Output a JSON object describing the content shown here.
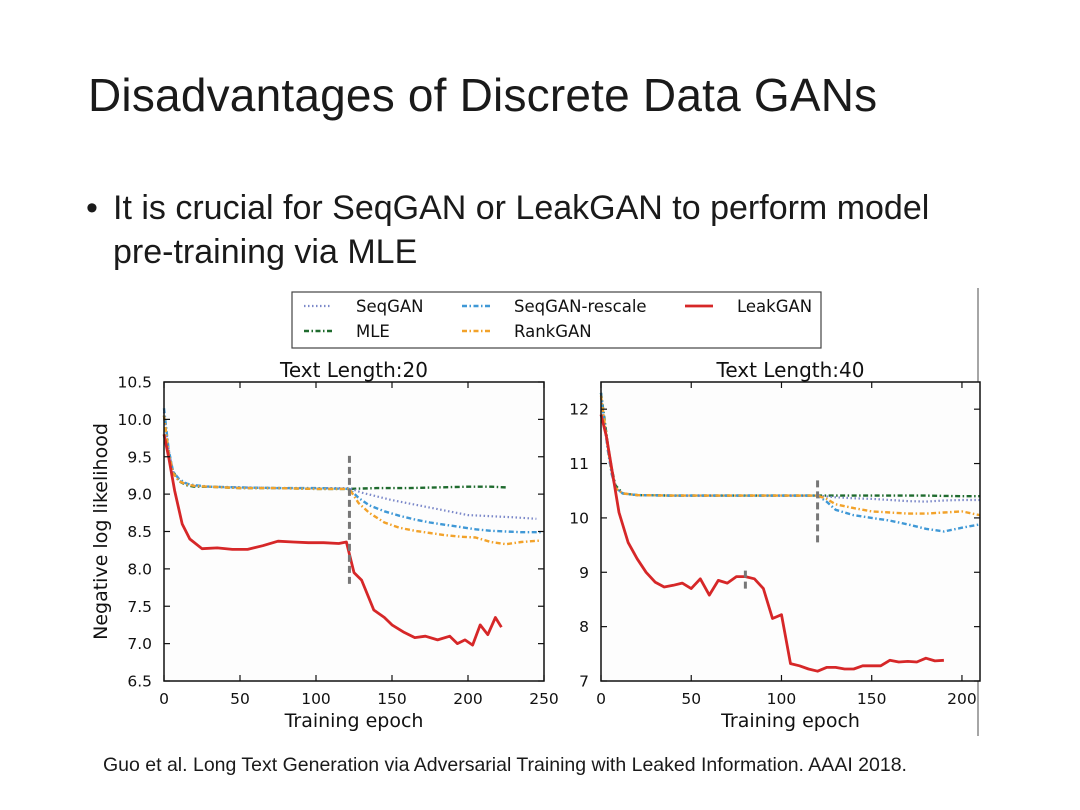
{
  "slide": {
    "title": "Disadvantages of Discrete Data GANs",
    "bullet_marker": "•",
    "bullet": "It is crucial for SeqGAN or LeakGAN to perform model pre-training via MLE",
    "citation": "Guo et al. Long Text Generation via Adversarial Training with Leaked Information. AAAI 2018."
  },
  "legend": {
    "entries": [
      {
        "name": "SeqGAN",
        "color": "#7b88c9",
        "style": "dotted"
      },
      {
        "name": "SeqGAN-rescale",
        "color": "#3f98d6",
        "style": "dashdot"
      },
      {
        "name": "LeakGAN",
        "color": "#d62728",
        "style": "solid"
      },
      {
        "name": "MLE",
        "color": "#1f6b2e",
        "style": "dashdot"
      },
      {
        "name": "RankGAN",
        "color": "#f2a22a",
        "style": "dashdot"
      }
    ]
  },
  "chart_data": [
    {
      "type": "line",
      "title": "Text Length:20",
      "xlabel": "Training epoch",
      "ylabel": "Negative log likelihood",
      "xlim": [
        0,
        250
      ],
      "ylim": [
        6.5,
        10.5
      ],
      "xticks": [
        0,
        50,
        100,
        150,
        200,
        250
      ],
      "yticks": [
        6.5,
        7.0,
        7.5,
        8.0,
        8.5,
        9.0,
        9.5,
        10.0,
        10.5
      ],
      "xtick_labels": [
        "0",
        "50",
        "100",
        "150",
        "200",
        "250"
      ],
      "ytick_labels": [
        "6.5",
        "7.0",
        "7.5",
        "8.0",
        "8.5",
        "9.0",
        "9.5",
        "10.0",
        "10.5"
      ],
      "vlines": [
        {
          "x": 122,
          "y_from": 7.8,
          "y_to": 9.55
        }
      ],
      "series": [
        {
          "name": "MLE",
          "x": [
            0,
            3,
            6,
            10,
            15,
            20,
            30,
            50,
            75,
            100,
            122,
            140,
            160,
            180,
            200,
            215,
            225
          ],
          "y": [
            10.05,
            9.55,
            9.3,
            9.17,
            9.12,
            9.1,
            9.1,
            9.08,
            9.08,
            9.07,
            9.07,
            9.08,
            9.08,
            9.09,
            9.1,
            9.1,
            9.09
          ]
        },
        {
          "name": "SeqGAN",
          "x": [
            0,
            3,
            6,
            10,
            15,
            20,
            30,
            50,
            75,
            100,
            122,
            130,
            140,
            150,
            160,
            170,
            180,
            190,
            200,
            210,
            220,
            230,
            245
          ],
          "y": [
            10.1,
            9.6,
            9.3,
            9.18,
            9.13,
            9.11,
            9.1,
            9.09,
            9.08,
            9.08,
            9.08,
            9.02,
            8.97,
            8.92,
            8.88,
            8.84,
            8.8,
            8.76,
            8.72,
            8.71,
            8.7,
            8.69,
            8.67
          ]
        },
        {
          "name": "SeqGAN-rescale",
          "x": [
            0,
            3,
            6,
            10,
            15,
            20,
            30,
            50,
            75,
            100,
            122,
            128,
            135,
            145,
            155,
            165,
            175,
            185,
            195,
            205,
            215,
            225,
            235,
            248
          ],
          "y": [
            10.15,
            9.6,
            9.3,
            9.2,
            9.14,
            9.12,
            9.1,
            9.09,
            9.08,
            9.08,
            9.07,
            8.95,
            8.85,
            8.77,
            8.71,
            8.66,
            8.62,
            8.59,
            8.56,
            8.53,
            8.51,
            8.5,
            8.49,
            8.49
          ]
        },
        {
          "name": "RankGAN",
          "x": [
            0,
            3,
            6,
            10,
            15,
            20,
            30,
            50,
            75,
            100,
            122,
            128,
            135,
            145,
            155,
            165,
            175,
            185,
            195,
            205,
            215,
            225,
            235,
            248
          ],
          "y": [
            10.05,
            9.55,
            9.28,
            9.17,
            9.13,
            9.11,
            9.1,
            9.08,
            9.08,
            9.07,
            9.07,
            8.88,
            8.75,
            8.62,
            8.55,
            8.51,
            8.48,
            8.45,
            8.43,
            8.42,
            8.36,
            8.33,
            8.36,
            8.38
          ]
        },
        {
          "name": "LeakGAN",
          "x": [
            0,
            3,
            7,
            12,
            17,
            25,
            35,
            45,
            55,
            65,
            75,
            85,
            95,
            105,
            115,
            120,
            125,
            130,
            138,
            145,
            150,
            158,
            165,
            172,
            180,
            188,
            193,
            198,
            203,
            208,
            213,
            218,
            222
          ],
          "y": [
            9.8,
            9.5,
            9.05,
            8.6,
            8.4,
            8.27,
            8.28,
            8.26,
            8.26,
            8.31,
            8.37,
            8.36,
            8.35,
            8.35,
            8.34,
            8.36,
            7.95,
            7.85,
            7.45,
            7.35,
            7.25,
            7.15,
            7.08,
            7.1,
            7.05,
            7.1,
            7.0,
            7.05,
            6.98,
            7.25,
            7.12,
            7.35,
            7.22
          ]
        }
      ]
    },
    {
      "type": "line",
      "title": "Text Length:40",
      "xlabel": "Training epoch",
      "ylabel": "",
      "xlim": [
        0,
        210
      ],
      "ylim": [
        7,
        12.5
      ],
      "xticks": [
        0,
        50,
        100,
        150,
        200
      ],
      "yticks": [
        7,
        8,
        9,
        10,
        11,
        12
      ],
      "xtick_labels": [
        "0",
        "50",
        "100",
        "150",
        "200"
      ],
      "ytick_labels": [
        "7",
        "8",
        "9",
        "10",
        "11",
        "12"
      ],
      "vlines": [
        {
          "x": 80,
          "y_from": 8.7,
          "y_to": 9.1
        },
        {
          "x": 120,
          "y_from": 9.55,
          "y_to": 10.75
        }
      ],
      "series": [
        {
          "name": "MLE",
          "x": [
            0,
            2,
            4,
            6,
            8,
            12,
            20,
            40,
            60,
            80,
            100,
            120,
            140,
            160,
            180,
            200,
            210
          ],
          "y": [
            12.3,
            11.8,
            11.3,
            10.9,
            10.6,
            10.45,
            10.42,
            10.41,
            10.41,
            10.41,
            10.41,
            10.41,
            10.41,
            10.41,
            10.41,
            10.4,
            10.4
          ]
        },
        {
          "name": "SeqGAN",
          "x": [
            0,
            2,
            4,
            6,
            8,
            12,
            20,
            40,
            60,
            80,
            100,
            120,
            130,
            140,
            150,
            160,
            170,
            180,
            190,
            200,
            210
          ],
          "y": [
            12.2,
            11.7,
            11.2,
            10.8,
            10.55,
            10.45,
            10.42,
            10.41,
            10.41,
            10.41,
            10.41,
            10.41,
            10.38,
            10.36,
            10.35,
            10.33,
            10.31,
            10.3,
            10.32,
            10.33,
            10.33
          ]
        },
        {
          "name": "SeqGAN-rescale",
          "x": [
            0,
            2,
            4,
            6,
            8,
            12,
            20,
            40,
            60,
            80,
            100,
            120,
            125,
            130,
            140,
            150,
            160,
            170,
            180,
            190,
            200,
            210
          ],
          "y": [
            12.3,
            11.7,
            11.2,
            10.8,
            10.55,
            10.45,
            10.42,
            10.41,
            10.41,
            10.41,
            10.41,
            10.41,
            10.3,
            10.15,
            10.05,
            10.0,
            9.95,
            9.88,
            9.8,
            9.75,
            9.82,
            9.88
          ]
        },
        {
          "name": "RankGAN",
          "x": [
            0,
            2,
            4,
            6,
            8,
            12,
            20,
            40,
            60,
            80,
            100,
            120,
            125,
            130,
            140,
            150,
            160,
            170,
            180,
            190,
            200,
            210
          ],
          "y": [
            12.25,
            11.75,
            11.25,
            10.85,
            10.55,
            10.45,
            10.42,
            10.41,
            10.41,
            10.41,
            10.41,
            10.41,
            10.35,
            10.25,
            10.18,
            10.12,
            10.1,
            10.08,
            10.08,
            10.1,
            10.12,
            10.05
          ]
        },
        {
          "name": "LeakGAN",
          "x": [
            0,
            3,
            6,
            10,
            15,
            20,
            25,
            30,
            35,
            40,
            45,
            50,
            55,
            60,
            65,
            70,
            75,
            80,
            85,
            90,
            95,
            100,
            105,
            110,
            115,
            120,
            125,
            130,
            135,
            140,
            145,
            150,
            155,
            160,
            165,
            170,
            175,
            180,
            185,
            190
          ],
          "y": [
            11.9,
            11.5,
            10.9,
            10.1,
            9.55,
            9.25,
            9.0,
            8.82,
            8.73,
            8.76,
            8.8,
            8.7,
            8.88,
            8.58,
            8.85,
            8.8,
            8.92,
            8.92,
            8.88,
            8.7,
            8.15,
            8.22,
            7.32,
            7.28,
            7.22,
            7.18,
            7.25,
            7.25,
            7.22,
            7.22,
            7.28,
            7.28,
            7.28,
            7.38,
            7.35,
            7.36,
            7.35,
            7.42,
            7.37,
            7.38
          ]
        }
      ]
    }
  ]
}
